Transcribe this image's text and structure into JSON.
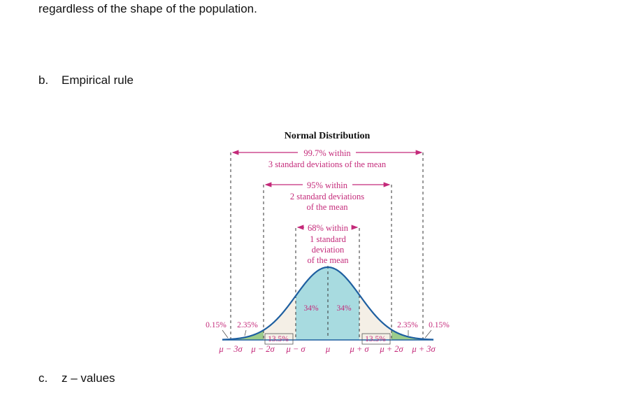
{
  "intro": {
    "text": "regardless of the shape of the population."
  },
  "items": [
    {
      "marker": "b.",
      "text": "Empirical rule"
    },
    {
      "marker": "c.",
      "text": "z – values"
    }
  ],
  "figure": {
    "title": "Normal Distribution",
    "band3": {
      "line1": "99.7% within",
      "line2": "3 standard deviations of the mean"
    },
    "band2": {
      "line1": "95% within",
      "line2": "2 standard deviations",
      "line3": "of the mean"
    },
    "band1": {
      "line1": "68% within",
      "line2": "1 standard",
      "line3": "deviation",
      "line4": "of the mean"
    },
    "pct": {
      "center_left": "34%",
      "center_right": "34%",
      "mid_left": "13.5%",
      "mid_right": "13.5%",
      "tail_left": "2.35%",
      "tail_right": "2.35%",
      "far_left": "0.15%",
      "far_right": "0.15%"
    },
    "axis": {
      "m3": "μ − 3σ",
      "m2": "μ − 2σ",
      "m1": "μ − σ",
      "mu": "μ",
      "p1": "μ + σ",
      "p2": "μ + 2σ",
      "p3": "μ + 3σ"
    },
    "colors": {
      "center": "#a8dbe0",
      "middle": "#f4efe6",
      "tail": "#9ccc8c",
      "curve": "#1e5fa0",
      "annotation": "#c42a7a"
    }
  }
}
